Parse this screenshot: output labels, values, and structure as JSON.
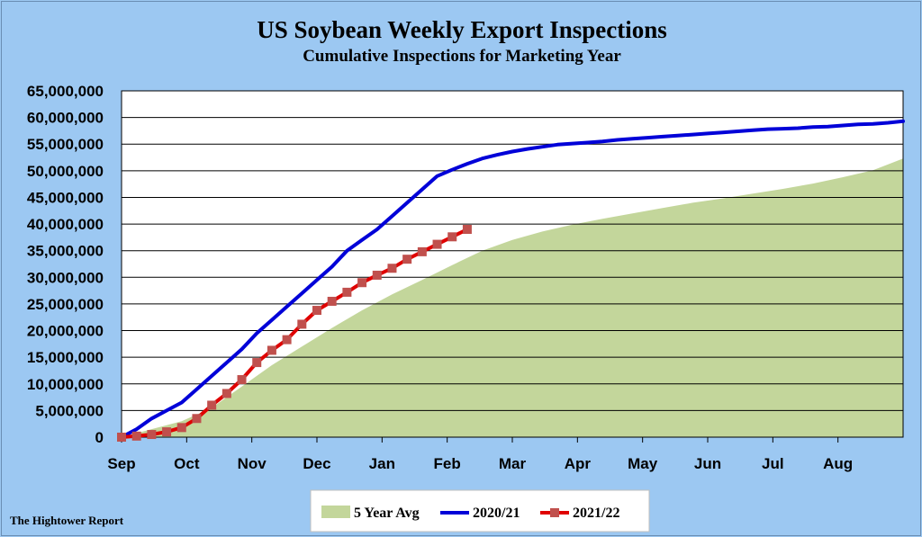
{
  "chart_data": {
    "type": "line",
    "title": "US Soybean Weekly Export Inspections",
    "subtitle": "Cumulative  Inspections for Marketing Year",
    "x_categories": [
      "Sep",
      "Oct",
      "Nov",
      "Dec",
      "Jan",
      "Feb",
      "Mar",
      "Apr",
      "May",
      "Jun",
      "Jul",
      "Aug"
    ],
    "ylim": [
      0,
      65000000
    ],
    "y_ticks": [
      "0",
      "5,000,000",
      "10,000,000",
      "15,000,000",
      "20,000,000",
      "25,000,000",
      "30,000,000",
      "35,000,000",
      "40,000,000",
      "45,000,000",
      "50,000,000",
      "55,000,000",
      "60,000,000",
      "65,000,000"
    ],
    "grid": true,
    "legend_position": "bottom",
    "week_range": [
      0,
      52
    ],
    "series": [
      {
        "name": "5 Year Avg",
        "style": "area",
        "color": "#c3d69b",
        "x": [
          0,
          2,
          4,
          6,
          8,
          10,
          12,
          14,
          16,
          18,
          20,
          22,
          24,
          26,
          28,
          30,
          32,
          34,
          36,
          38,
          40,
          42,
          44,
          46,
          48,
          50,
          52
        ],
        "y": [
          0,
          1500000,
          3000000,
          5500000,
          9500000,
          13500000,
          17000000,
          20500000,
          23800000,
          26800000,
          29500000,
          32300000,
          35000000,
          37000000,
          38600000,
          39900000,
          41000000,
          42000000,
          43000000,
          44000000,
          44800000,
          45700000,
          46600000,
          47600000,
          48800000,
          50100000,
          52300000
        ]
      },
      {
        "name": "2020/21",
        "style": "line",
        "color": "#0000d8",
        "x": [
          0,
          1,
          2,
          3,
          4,
          5,
          6,
          7,
          8,
          9,
          10,
          11,
          12,
          13,
          14,
          15,
          16,
          17,
          18,
          19,
          20,
          21,
          22,
          23,
          24,
          25,
          26,
          27,
          28,
          29,
          30,
          31,
          32,
          33,
          34,
          35,
          36,
          37,
          38,
          39,
          40,
          41,
          42,
          43,
          44,
          45,
          46,
          47,
          48,
          49,
          50,
          51,
          52
        ],
        "y": [
          0,
          1500000,
          3500000,
          5000000,
          6500000,
          9000000,
          11500000,
          14000000,
          16500000,
          19500000,
          22000000,
          24500000,
          27000000,
          29500000,
          32000000,
          35000000,
          37000000,
          39000000,
          41500000,
          44000000,
          46500000,
          49000000,
          50200000,
          51300000,
          52300000,
          53000000,
          53600000,
          54100000,
          54500000,
          54900000,
          55100000,
          55300000,
          55500000,
          55800000,
          56000000,
          56200000,
          56400000,
          56600000,
          56800000,
          57000000,
          57200000,
          57400000,
          57600000,
          57800000,
          57900000,
          58000000,
          58200000,
          58300000,
          58500000,
          58700000,
          58800000,
          59000000,
          59300000
        ]
      },
      {
        "name": "2021/22",
        "style": "line-markers",
        "color": "#e00000",
        "marker_color": "#c0504d",
        "x": [
          0,
          1,
          2,
          3,
          4,
          5,
          6,
          7,
          8,
          9,
          10,
          11,
          12,
          13,
          14,
          15,
          16,
          17,
          18,
          19,
          20,
          21,
          22,
          23
        ],
        "y": [
          0,
          200000,
          500000,
          1000000,
          1800000,
          3500000,
          6000000,
          8200000,
          10800000,
          14000000,
          16300000,
          18300000,
          21200000,
          23800000,
          25500000,
          27200000,
          29000000,
          30400000,
          31700000,
          33400000,
          34800000,
          36200000,
          37600000,
          39000000
        ]
      }
    ]
  },
  "source": "The Hightower Report"
}
